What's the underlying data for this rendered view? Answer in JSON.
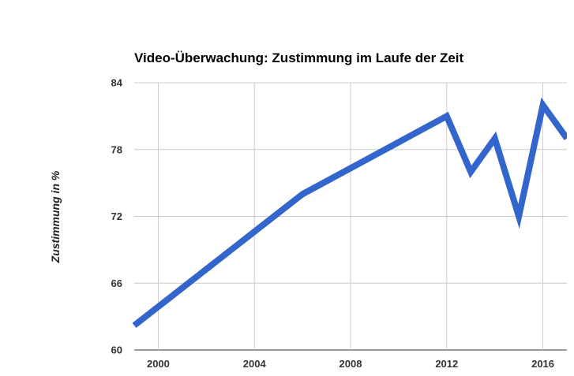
{
  "chart_data": {
    "type": "line",
    "title": "Video-Überwachung: Zustimmung im Laufe der Zeit",
    "xlabel": "",
    "ylabel": "Zustimmung in %",
    "xlim": [
      1999,
      2017
    ],
    "ylim": [
      60,
      84
    ],
    "x_ticks": [
      2000,
      2004,
      2008,
      2012,
      2016
    ],
    "y_ticks": [
      60,
      66,
      72,
      78,
      84
    ],
    "grid": true,
    "legend": "none",
    "series": [
      {
        "color": "#3366cc",
        "points": [
          {
            "x": 1999,
            "y": 62.2
          },
          {
            "x": 2006,
            "y": 74
          },
          {
            "x": 2012,
            "y": 81
          },
          {
            "x": 2013,
            "y": 76
          },
          {
            "x": 2014,
            "y": 79
          },
          {
            "x": 2015,
            "y": 72
          },
          {
            "x": 2016,
            "y": 82
          },
          {
            "x": 2017,
            "y": 79
          }
        ]
      }
    ]
  }
}
